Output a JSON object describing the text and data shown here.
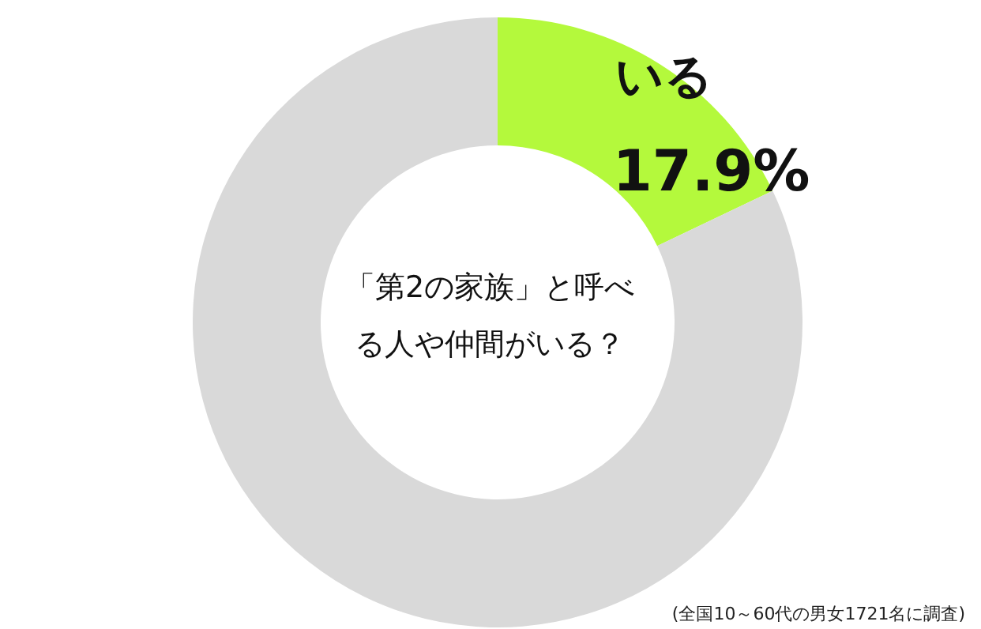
{
  "chart_data": {
    "type": "donut",
    "title": "「第2の家族」と呼べる人や仲間がいる？",
    "categories": [
      "いる",
      null
    ],
    "values": [
      17.9,
      82.1
    ],
    "colors": [
      "#b4f93c",
      "#d9d9d9"
    ],
    "value_labels": [
      "17.9%",
      null
    ],
    "annotations": [
      "(全国10～60代の男女1721名に調査)"
    ]
  }
}
